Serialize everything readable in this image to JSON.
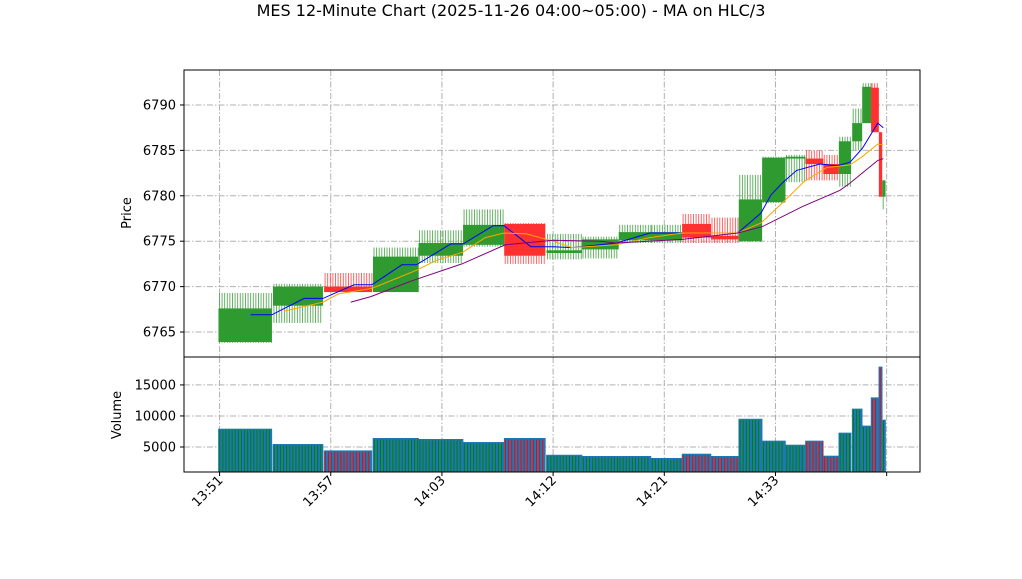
{
  "chart_data": {
    "type": "candlestick",
    "title": "MES 12-Minute Chart (2025-11-26 04:00~05:00) - MA on HLC/3",
    "x_unit": "bar position (tick spacing = 10)",
    "xlim": [
      -3.2,
      63.0
    ],
    "x_ticks": [
      {
        "x": 0,
        "label": "13:51"
      },
      {
        "x": 10,
        "label": "13:57"
      },
      {
        "x": 20,
        "label": "14:03"
      },
      {
        "x": 30,
        "label": "14:12"
      },
      {
        "x": 40,
        "label": "14:21"
      },
      {
        "x": 50,
        "label": "14:33"
      },
      {
        "x": 60,
        "label": ""
      }
    ],
    "price_panel": {
      "ylabel": "Price",
      "ylim": [
        6762.25,
        6793.85
      ],
      "yticks": [
        6765,
        6770,
        6775,
        6780,
        6785,
        6790
      ],
      "grid": true
    },
    "volume_panel": {
      "ylabel": "Volume",
      "ylim": [
        970,
        19500
      ],
      "yticks": [
        5000,
        10000,
        15000
      ],
      "grid": true
    },
    "colors": {
      "up": "#2f9a2f",
      "down": "#ff3030",
      "up_wick": "#55aa55",
      "down_wick": "#ff5555",
      "volume": "#1f77b4",
      "ma_fast": "#0000ff",
      "ma_mid": "#ffa500",
      "ma_slow": "#800080"
    },
    "candles": [
      {
        "x0": -0.1,
        "x1": 4.7,
        "open": 6763.9,
        "high": 6769.3,
        "low": 6763.8,
        "close": 6767.6,
        "volume": 7900
      },
      {
        "x0": 4.8,
        "x1": 9.3,
        "open": 6767.9,
        "high": 6770.3,
        "low": 6766.0,
        "close": 6770.0,
        "volume": 5430
      },
      {
        "x0": 9.4,
        "x1": 13.7,
        "open": 6770.0,
        "high": 6771.5,
        "low": 6769.4,
        "close": 6769.4,
        "volume": 4400
      },
      {
        "x0": 13.8,
        "x1": 17.9,
        "open": 6769.4,
        "high": 6774.3,
        "low": 6769.4,
        "close": 6773.3,
        "volume": 6400
      },
      {
        "x0": 17.9,
        "x1": 21.9,
        "open": 6773.4,
        "high": 6776.2,
        "low": 6772.6,
        "close": 6774.8,
        "volume": 6240
      },
      {
        "x0": 21.9,
        "x1": 25.6,
        "open": 6774.6,
        "high": 6778.5,
        "low": 6774.4,
        "close": 6776.8,
        "volume": 5750
      },
      {
        "x0": 25.6,
        "x1": 29.3,
        "open": 6776.9,
        "high": 6777.0,
        "low": 6772.5,
        "close": 6773.4,
        "volume": 6400
      },
      {
        "x0": 29.4,
        "x1": 32.6,
        "open": 6773.7,
        "high": 6775.8,
        "low": 6773.0,
        "close": 6774.0,
        "volume": 3700
      },
      {
        "x0": 32.6,
        "x1": 35.9,
        "open": 6774.1,
        "high": 6775.5,
        "low": 6773.1,
        "close": 6775.2,
        "volume": 3500
      },
      {
        "x0": 35.9,
        "x1": 38.8,
        "open": 6775.1,
        "high": 6776.8,
        "low": 6774.8,
        "close": 6776.0,
        "volume": 3500
      },
      {
        "x0": 38.8,
        "x1": 41.6,
        "open": 6775.1,
        "high": 6776.8,
        "low": 6774.8,
        "close": 6776.0,
        "volume": 3180
      },
      {
        "x0": 41.6,
        "x1": 44.2,
        "open": 6776.9,
        "high": 6778.0,
        "low": 6774.8,
        "close": 6775.4,
        "volume": 3870
      },
      {
        "x0": 44.2,
        "x1": 46.7,
        "open": 6775.6,
        "high": 6777.6,
        "low": 6774.8,
        "close": 6775.2,
        "volume": 3500
      },
      {
        "x0": 46.7,
        "x1": 48.8,
        "open": 6775.0,
        "high": 6782.3,
        "low": 6774.9,
        "close": 6779.6,
        "volume": 9500
      },
      {
        "x0": 48.8,
        "x1": 50.9,
        "open": 6779.3,
        "high": 6784.3,
        "low": 6779.2,
        "close": 6784.2,
        "volume": 5970
      },
      {
        "x0": 50.9,
        "x1": 52.7,
        "open": 6784.1,
        "high": 6784.5,
        "low": 6781.5,
        "close": 6784.3,
        "volume": 5320
      },
      {
        "x0": 52.7,
        "x1": 54.3,
        "open": 6784.1,
        "high": 6785.0,
        "low": 6781.7,
        "close": 6783.5,
        "volume": 5970
      },
      {
        "x0": 54.3,
        "x1": 55.7,
        "open": 6783.5,
        "high": 6784.5,
        "low": 6781.7,
        "close": 6782.4,
        "volume": 3550
      },
      {
        "x0": 55.7,
        "x1": 56.8,
        "open": 6782.4,
        "high": 6786.5,
        "low": 6781.0,
        "close": 6786.0,
        "volume": 7260
      },
      {
        "x0": 56.9,
        "x1": 57.8,
        "open": 6786.0,
        "high": 6789.6,
        "low": 6785.0,
        "close": 6788.0,
        "volume": 11130
      },
      {
        "x0": 57.8,
        "x1": 58.6,
        "open": 6788.0,
        "high": 6792.4,
        "low": 6788.0,
        "close": 6792.0,
        "volume": 8390
      },
      {
        "x0": 58.6,
        "x1": 59.3,
        "open": 6791.9,
        "high": 6792.4,
        "low": 6787.0,
        "close": 6787.0,
        "volume": 12950
      },
      {
        "x0": 59.3,
        "x1": 59.6,
        "open": 6787.0,
        "high": 6787.0,
        "low": 6779.9,
        "close": 6779.9,
        "volume": 17900
      },
      {
        "x0": 59.6,
        "x1": 59.9,
        "open": 6779.9,
        "high": 6781.7,
        "low": 6778.5,
        "close": 6781.7,
        "volume": 9350
      }
    ],
    "moving_averages": [
      {
        "name": "fast",
        "color": "#0000ff",
        "x": [
          2.8,
          4.7,
          7.6,
          9.3,
          12.1,
          13.7,
          16.4,
          17.7,
          20.8,
          21.9,
          24.6,
          25.6,
          28.0,
          30.0,
          31.7,
          35.7,
          38.7,
          41.6,
          46.6,
          48.7,
          49.6,
          50.6,
          51.9,
          54.0,
          55.5,
          56.7,
          57.8,
          59.2,
          59.7
        ],
        "y": [
          6766.9,
          6766.9,
          6768.7,
          6768.7,
          6770.2,
          6770.2,
          6772.4,
          6772.4,
          6774.7,
          6774.7,
          6776.7,
          6776.7,
          6774.4,
          6774.4,
          6774.3,
          6774.8,
          6775.9,
          6775.9,
          6775.9,
          6778.1,
          6780.1,
          6781.4,
          6782.8,
          6783.5,
          6783.3,
          6783.7,
          6785.2,
          6788.0,
          6787.5
        ]
      },
      {
        "name": "mid",
        "color": "#ffa500",
        "x": [
          5.8,
          9.3,
          10.7,
          13.7,
          17.7,
          19.5,
          21.9,
          23.9,
          25.6,
          27.6,
          30.0,
          31.7,
          35.7,
          38.7,
          41.6,
          46.6,
          48.7,
          50.6,
          52.6,
          54.6,
          56.7,
          57.8,
          59.2,
          59.7
        ],
        "y": [
          6767.3,
          6768.3,
          6769.2,
          6769.8,
          6771.8,
          6772.9,
          6773.8,
          6775.4,
          6775.9,
          6775.8,
          6775.0,
          6774.3,
          6774.6,
          6775.4,
          6775.9,
          6775.9,
          6777.0,
          6779.2,
          6781.6,
          6783.1,
          6783.4,
          6784.3,
          6785.7,
          6785.6
        ]
      },
      {
        "name": "slow",
        "color": "#800080",
        "x": [
          11.8,
          13.6,
          17.2,
          21.8,
          25.7,
          30.0,
          34.2,
          35.7,
          41.6,
          46.6,
          48.8,
          52.4,
          55.8,
          56.7,
          58.5,
          59.2,
          59.7
        ],
        "y": [
          6768.3,
          6768.9,
          6770.6,
          6772.5,
          6774.6,
          6775.1,
          6775.0,
          6774.8,
          6775.2,
          6775.9,
          6776.6,
          6778.8,
          6780.6,
          6781.4,
          6783.2,
          6783.9,
          6784.1
        ]
      }
    ]
  }
}
